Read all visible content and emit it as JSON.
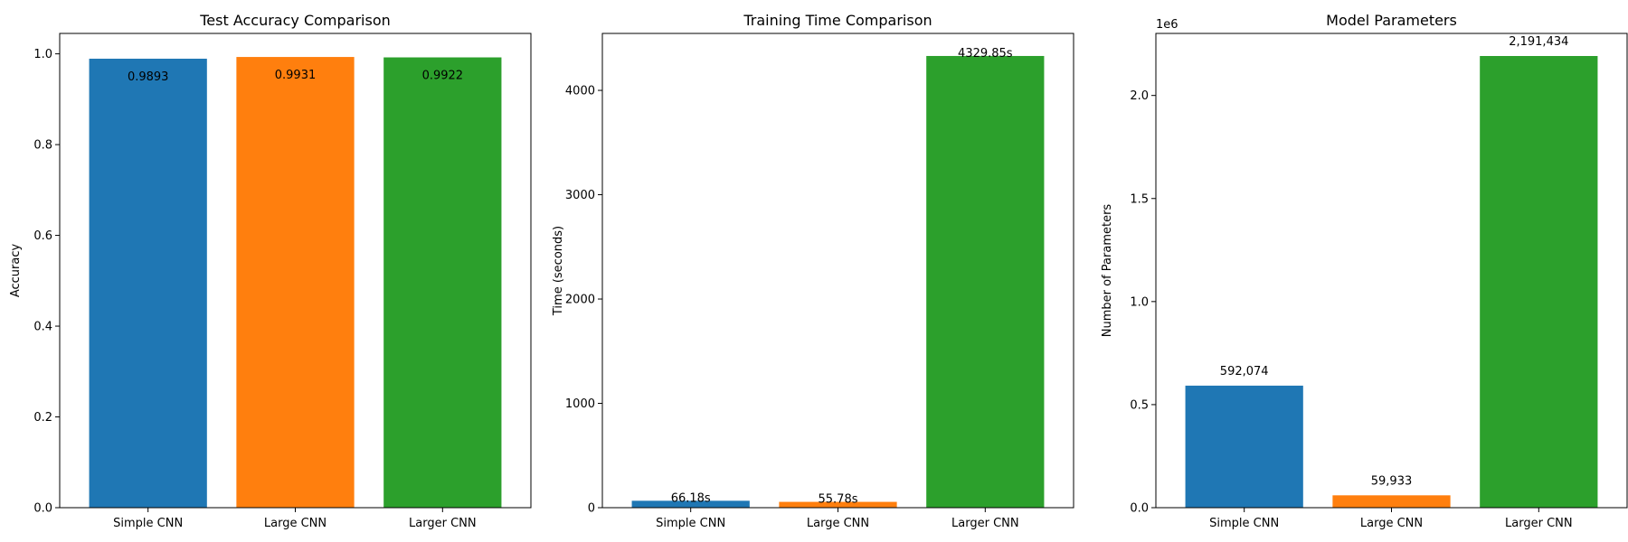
{
  "chart_data": [
    {
      "type": "bar",
      "title": "Test Accuracy Comparison",
      "xlabel": "",
      "ylabel": "Accuracy",
      "categories": [
        "Simple CNN",
        "Large CNN",
        "Larger CNN"
      ],
      "values": [
        0.9893,
        0.9931,
        0.9922
      ],
      "data_labels": [
        "0.9893",
        "0.9931",
        "0.9922"
      ],
      "data_label_position": "inside-top",
      "colors": [
        "#1f77b4",
        "#ff7f0e",
        "#2ca02c"
      ],
      "ylim": [
        0,
        1.045
      ],
      "yticks": [
        0,
        0.2,
        0.4,
        0.6,
        0.8,
        1.0
      ],
      "ytick_labels": [
        "0.0",
        "0.2",
        "0.4",
        "0.6",
        "0.8",
        "1.0"
      ],
      "y_offset_label": "",
      "grid": false,
      "legend": "none"
    },
    {
      "type": "bar",
      "title": "Training Time Comparison",
      "xlabel": "",
      "ylabel": "Time (seconds)",
      "categories": [
        "Simple CNN",
        "Large CNN",
        "Larger CNN"
      ],
      "values": [
        66.18,
        55.78,
        4329.85
      ],
      "data_labels": [
        "66.18s",
        "55.78s",
        "4329.85s"
      ],
      "data_label_position": "on-top",
      "colors": [
        "#1f77b4",
        "#ff7f0e",
        "#2ca02c"
      ],
      "ylim": [
        0,
        4546
      ],
      "yticks": [
        0,
        1000,
        2000,
        3000,
        4000
      ],
      "ytick_labels": [
        "0",
        "1000",
        "2000",
        "3000",
        "4000"
      ],
      "y_offset_label": "",
      "grid": false,
      "legend": "none"
    },
    {
      "type": "bar",
      "title": "Model Parameters",
      "xlabel": "",
      "ylabel": "Number of Parameters",
      "categories": [
        "Simple CNN",
        "Large CNN",
        "Larger CNN"
      ],
      "values": [
        592074,
        59933,
        2191434
      ],
      "data_labels": [
        "592,074",
        "59,933",
        "2,191,434"
      ],
      "data_label_position": "above",
      "colors": [
        "#1f77b4",
        "#ff7f0e",
        "#2ca02c"
      ],
      "ylim": [
        0,
        2301000
      ],
      "yticks": [
        0,
        500000,
        1000000,
        1500000,
        2000000
      ],
      "ytick_labels": [
        "0.0",
        "0.5",
        "1.0",
        "1.5",
        "2.0"
      ],
      "y_offset_label": "1e6",
      "grid": false,
      "legend": "none"
    }
  ]
}
